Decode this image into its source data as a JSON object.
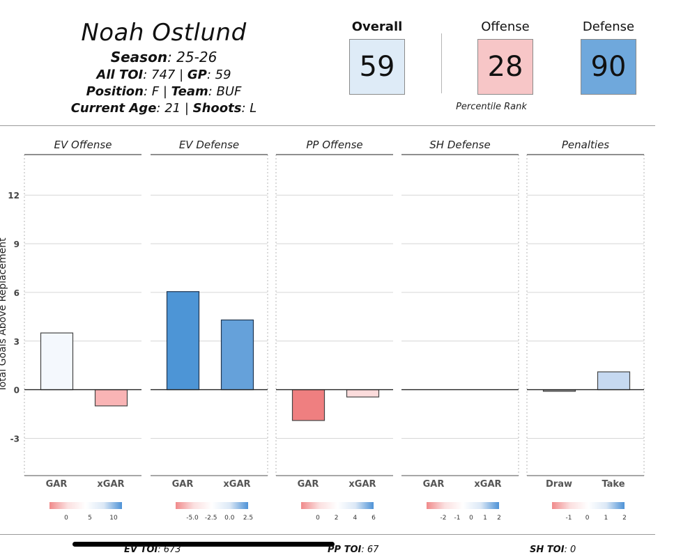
{
  "player": {
    "name": "Noah Ostlund",
    "season_label": "Season",
    "season": "25-26",
    "toi_label": "All TOI",
    "toi": "747",
    "gp_label": "GP",
    "gp": "59",
    "position_label": "Position",
    "position": "F",
    "team_label": "Team",
    "team": "BUF",
    "age_label": "Current Age",
    "age": "21",
    "shoots_label": "Shoots",
    "shoots": "L"
  },
  "percentiles": {
    "overall": {
      "label": "Overall",
      "value": "59",
      "color": "#deebf7"
    },
    "offense": {
      "label": "Offense",
      "value": "28",
      "color": "#f7c6c7"
    },
    "defense": {
      "label": "Defense",
      "value": "90",
      "color": "#6fa8dc"
    },
    "caption": "Percentile Rank"
  },
  "chart_data": {
    "type": "bar",
    "ylabel": "Total Goals Above Replacement",
    "ylim": [
      -5.3,
      14.5
    ],
    "yticks": [
      -3,
      0,
      3,
      6,
      9,
      12
    ],
    "grid": true,
    "panels": [
      {
        "title": "EV Offense",
        "categories": [
          "GAR",
          "xGAR"
        ],
        "values": [
          3.5,
          -1.0
        ],
        "bar_colors": [
          "#f4f8fd",
          "#f9b4b5"
        ],
        "legend": {
          "ticks": [
            "0",
            "5",
            "10"
          ]
        }
      },
      {
        "title": "EV Defense",
        "categories": [
          "GAR",
          "xGAR"
        ],
        "values": [
          6.05,
          4.3
        ],
        "bar_colors": [
          "#4d95d6",
          "#65a1da"
        ],
        "legend": {
          "ticks": [
            "-5.0",
            "-2.5",
            "0.0",
            "2.5"
          ]
        }
      },
      {
        "title": "PP Offense",
        "categories": [
          "GAR",
          "xGAR"
        ],
        "values": [
          -1.9,
          -0.45
        ],
        "bar_colors": [
          "#ef7f80",
          "#fbdcdc"
        ],
        "legend": {
          "ticks": [
            "0",
            "2",
            "4",
            "6"
          ]
        }
      },
      {
        "title": "SH Defense",
        "categories": [
          "GAR",
          "xGAR"
        ],
        "values": [
          0,
          0
        ],
        "bar_colors": [
          "#ffffff",
          "#ffffff"
        ],
        "legend": {
          "ticks": [
            "-2",
            "-1",
            "0",
            "1",
            "2"
          ]
        }
      },
      {
        "title": "Penalties",
        "categories": [
          "Draw",
          "Take"
        ],
        "values": [
          -0.1,
          1.1
        ],
        "bar_colors": [
          "#9a9a9a",
          "#c6d9f1"
        ],
        "legend": {
          "ticks": [
            "-1",
            "0",
            "1",
            "2"
          ]
        }
      }
    ]
  },
  "footer": {
    "ev_label": "EV TOI",
    "ev_value": "673",
    "pp_label": "PP TOI",
    "pp_value": "67",
    "sh_label": "SH TOI",
    "sh_value": "0"
  }
}
